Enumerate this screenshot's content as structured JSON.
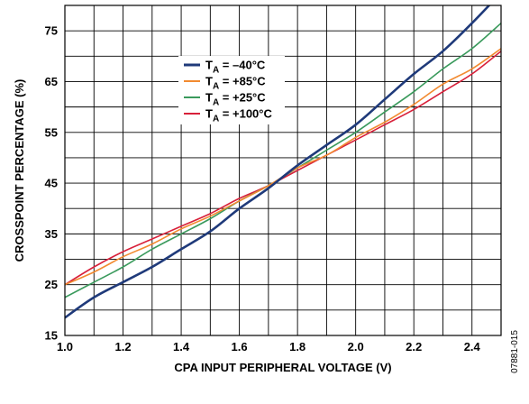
{
  "chart_data": {
    "type": "line",
    "title": "",
    "xlabel": "CPA INPUT PERIPHERAL VOLTAGE (V)",
    "ylabel": "CROSSPOINT PERCENTAGE (%)",
    "xlim": [
      1.0,
      2.5
    ],
    "ylim": [
      15,
      80
    ],
    "x_ticks": [
      1.0,
      1.2,
      1.4,
      1.6,
      1.8,
      2.0,
      2.2,
      2.4
    ],
    "x_tick_labels": [
      "1.0",
      "1.2",
      "1.4",
      "1.6",
      "1.8",
      "2.0",
      "2.2",
      "2.4"
    ],
    "y_ticks": [
      15,
      25,
      35,
      45,
      55,
      65,
      75
    ],
    "y_tick_labels": [
      "15",
      "25",
      "35",
      "45",
      "55",
      "65",
      "75"
    ],
    "grid": true,
    "legend_position": "top-center",
    "x": [
      1.0,
      1.1,
      1.2,
      1.3,
      1.4,
      1.5,
      1.6,
      1.7,
      1.8,
      1.9,
      2.0,
      2.1,
      2.2,
      2.3,
      2.4,
      2.5
    ],
    "series": [
      {
        "name": "TA = –40°C",
        "legend_main": "T",
        "legend_sub": "A",
        "legend_rest": " = –40°C",
        "color": "#1f3a7a",
        "values": [
          18.5,
          22.5,
          25.5,
          28.5,
          32.0,
          35.5,
          40.0,
          44.0,
          48.5,
          52.5,
          56.5,
          61.5,
          66.5,
          71.0,
          76.5,
          82.5
        ]
      },
      {
        "name": "TA = +85°C",
        "legend_main": "T",
        "legend_sub": "A",
        "legend_rest": " = +85°C",
        "color": "#f28a30",
        "values": [
          25.0,
          27.5,
          30.5,
          33.0,
          36.0,
          38.5,
          41.5,
          44.5,
          48.0,
          50.5,
          54.0,
          57.0,
          60.5,
          64.5,
          67.5,
          71.5
        ]
      },
      {
        "name": "TA = +25°C",
        "legend_main": "T",
        "legend_sub": "A",
        "legend_rest": " = +25°C",
        "color": "#3a9a5c",
        "values": [
          22.5,
          25.5,
          28.5,
          32.0,
          35.0,
          38.0,
          41.5,
          44.5,
          48.0,
          51.5,
          55.0,
          59.0,
          63.0,
          67.5,
          71.5,
          76.5
        ]
      },
      {
        "name": "TA = +100°C",
        "legend_main": "T",
        "legend_sub": "A",
        "legend_rest": " = +100°C",
        "color": "#d8203a",
        "values": [
          25.0,
          28.5,
          31.5,
          34.0,
          36.5,
          39.0,
          42.0,
          44.5,
          47.5,
          50.5,
          53.5,
          56.5,
          59.5,
          63.0,
          66.5,
          71.0
        ]
      }
    ]
  },
  "figure_id": "07881-015"
}
